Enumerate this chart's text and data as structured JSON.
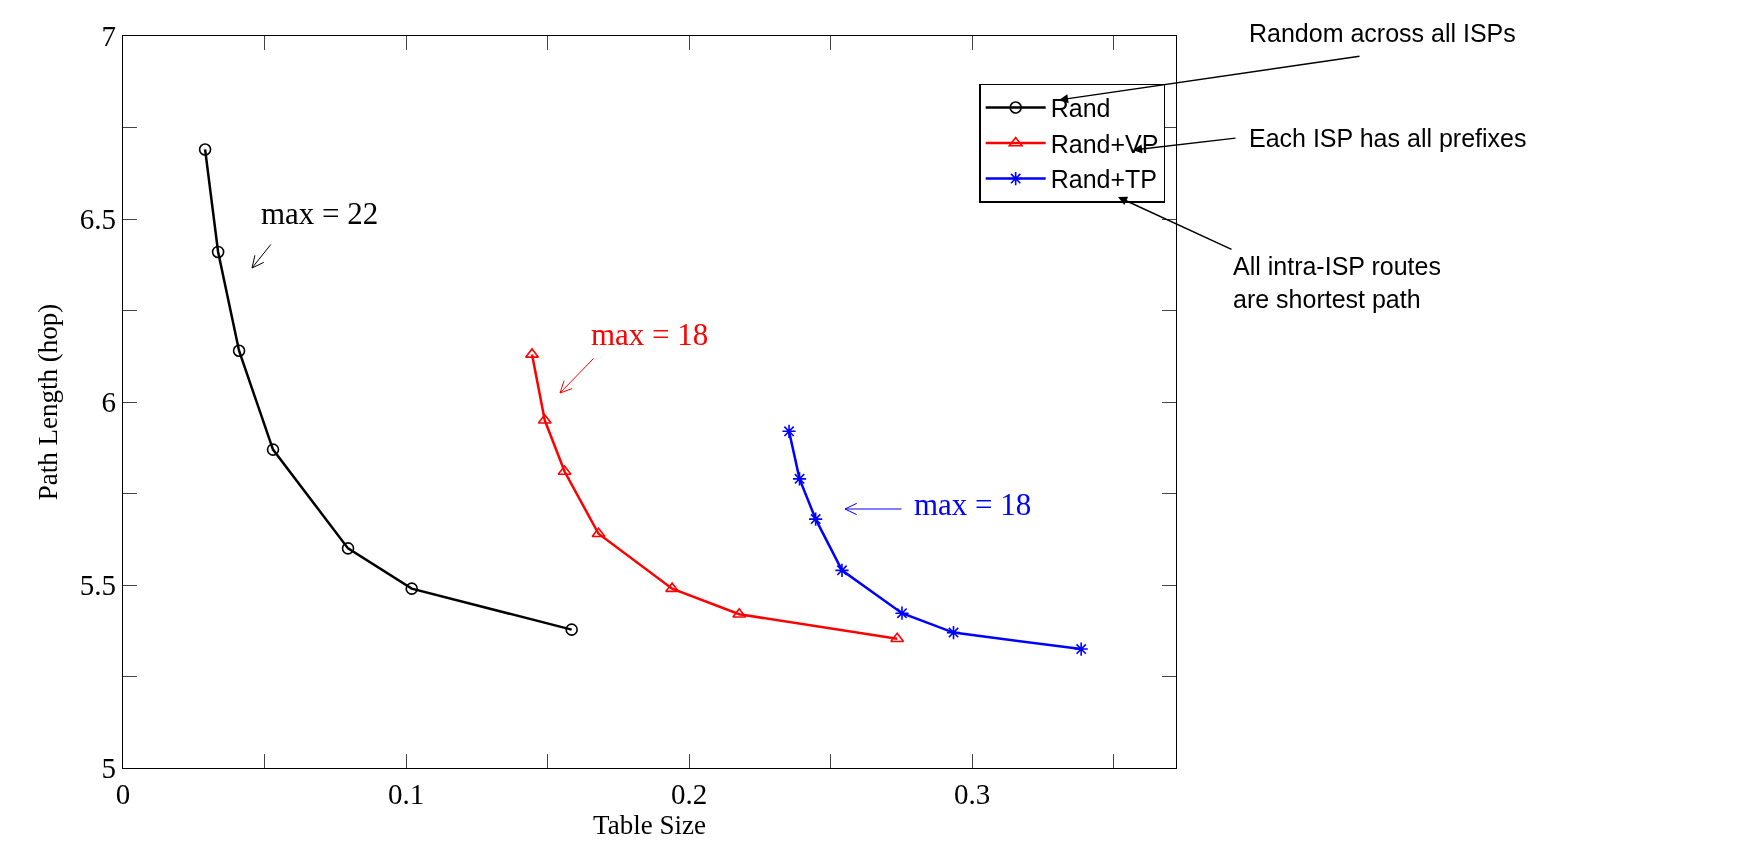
{
  "chart_data": {
    "type": "line",
    "xlabel": "Table Size",
    "ylabel": "Path Length (hop)",
    "xlim": [
      0,
      0.372
    ],
    "ylim": [
      5,
      7
    ],
    "xticks": [
      0,
      {
        "value": 0.05,
        "label": null
      },
      0.1,
      {
        "value": 0.15,
        "label": null
      },
      0.2,
      {
        "value": 0.25,
        "label": null
      },
      0.3,
      {
        "value": 0.35,
        "label": null
      }
    ],
    "yticks": [
      5,
      {
        "value": 5.25,
        "label": null
      },
      5.5,
      {
        "value": 5.75,
        "label": null
      },
      6,
      {
        "value": 6.25,
        "label": null
      },
      6.5,
      {
        "value": 6.75,
        "label": null
      },
      7
    ],
    "legend": "top right",
    "series": [
      {
        "name": "Rand",
        "color": "#000000",
        "marker": "circle",
        "x": [
          0.029,
          0.0336,
          0.041,
          0.053,
          0.0795,
          0.102,
          0.1585
        ],
        "values": [
          6.69,
          6.41,
          6.14,
          5.87,
          5.6,
          5.49,
          5.378
        ]
      },
      {
        "name": "Rand+VP",
        "color": "#ff0000",
        "marker": "triangle",
        "x": [
          0.1445,
          0.149,
          0.156,
          0.168,
          0.194,
          0.2177,
          0.2735
        ],
        "values": [
          6.13,
          5.95,
          5.81,
          5.64,
          5.49,
          5.42,
          5.353
        ]
      },
      {
        "name": "Rand+TP",
        "color": "#0000ff",
        "marker": "cross",
        "x": [
          0.2353,
          0.239,
          0.2447,
          0.254,
          0.2752,
          0.2934,
          0.3385
        ],
        "values": [
          5.92,
          5.79,
          5.68,
          5.54,
          5.423,
          5.37,
          5.325
        ]
      }
    ],
    "annotations": [
      "max = 22",
      "max = 18",
      "max = 18",
      "Random across all ISPs",
      "Each ISP has all prefixes",
      "All intra-ISP routes\nare shortest path"
    ]
  }
}
